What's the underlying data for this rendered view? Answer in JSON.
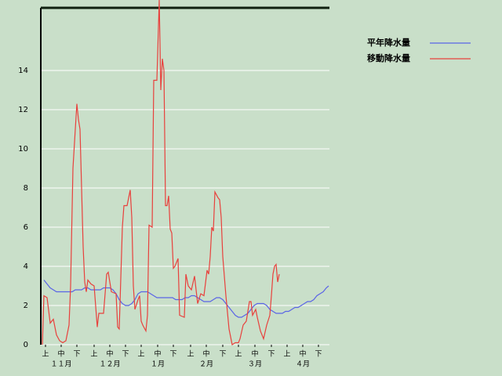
{
  "chart_data": {
    "type": "line",
    "xlim": [
      0,
      184
    ],
    "ylim": [
      0,
      17.2
    ],
    "yticks": [
      0,
      2,
      4,
      6,
      8,
      10,
      12,
      14
    ],
    "xticks": [
      {
        "value": 3,
        "label": "上"
      },
      {
        "value": 13,
        "label": "中"
      },
      {
        "value": 23,
        "label": "下"
      },
      {
        "value": 34,
        "label": "上"
      },
      {
        "value": 44,
        "label": "中"
      },
      {
        "value": 54,
        "label": "下"
      },
      {
        "value": 64,
        "label": "上"
      },
      {
        "value": 74.5,
        "label": "中"
      },
      {
        "value": 84.5,
        "label": "下"
      },
      {
        "value": 95.5,
        "label": "上"
      },
      {
        "value": 105.5,
        "label": "中"
      },
      {
        "value": 116,
        "label": "下"
      },
      {
        "value": 126,
        "label": "上"
      },
      {
        "value": 136.5,
        "label": "中"
      },
      {
        "value": 147,
        "label": "下"
      },
      {
        "value": 157,
        "label": "上"
      },
      {
        "value": 167,
        "label": "中"
      },
      {
        "value": 177,
        "label": "下"
      }
    ],
    "month_ticks": [
      {
        "value": 13,
        "label": "１１月"
      },
      {
        "value": 44,
        "label": "１２月"
      },
      {
        "value": 74.5,
        "label": "１月"
      },
      {
        "value": 105.5,
        "label": "２月"
      },
      {
        "value": 136.5,
        "label": "３月"
      },
      {
        "value": 167,
        "label": "４月"
      }
    ],
    "grid": true,
    "series": [
      {
        "name": "平年降水量",
        "color": "#5a64e6",
        "x": [
          2,
          4,
          6,
          8,
          10,
          20,
          22,
          26,
          28,
          30,
          32,
          38,
          40,
          44,
          46,
          48,
          50,
          52,
          54,
          56,
          58,
          60,
          62,
          64,
          68,
          70,
          72,
          74,
          84,
          86,
          90,
          92,
          94,
          96,
          98,
          100,
          102,
          104,
          108,
          110,
          112,
          114,
          116,
          118,
          120,
          122,
          124,
          126,
          128,
          130,
          132,
          134,
          136,
          138,
          142,
          144,
          146,
          148,
          150,
          154,
          156,
          158,
          160,
          162,
          164,
          166,
          168,
          170,
          172,
          174,
          176,
          178,
          180,
          182,
          183.5
        ],
        "values": [
          3.3,
          3.1,
          2.9,
          2.8,
          2.7,
          2.7,
          2.8,
          2.8,
          2.9,
          2.9,
          2.8,
          2.8,
          2.9,
          2.9,
          2.8,
          2.6,
          2.3,
          2.1,
          2.0,
          2.0,
          2.1,
          2.3,
          2.6,
          2.7,
          2.7,
          2.6,
          2.5,
          2.4,
          2.4,
          2.3,
          2.3,
          2.4,
          2.4,
          2.5,
          2.5,
          2.4,
          2.3,
          2.2,
          2.2,
          2.3,
          2.4,
          2.4,
          2.3,
          2.1,
          1.9,
          1.7,
          1.5,
          1.4,
          1.4,
          1.5,
          1.6,
          1.8,
          2.0,
          2.1,
          2.1,
          2.0,
          1.8,
          1.7,
          1.6,
          1.6,
          1.7,
          1.7,
          1.8,
          1.9,
          1.9,
          2.0,
          2.1,
          2.2,
          2.2,
          2.3,
          2.5,
          2.6,
          2.7,
          2.9,
          3.0
        ]
      },
      {
        "name": "移動降水量",
        "color": "#e8403c",
        "x": [
          1,
          2,
          4,
          6,
          8,
          10,
          12,
          14,
          16,
          18,
          19,
          20.5,
          22,
          23,
          24,
          25,
          26,
          27,
          28,
          29,
          30,
          32,
          34,
          36,
          37,
          40,
          42,
          43,
          45,
          48,
          49,
          50,
          52,
          53,
          55,
          57,
          58,
          59,
          60,
          62,
          63,
          64,
          65,
          67,
          68,
          69,
          71,
          72,
          74,
          75.5,
          76.5,
          77.5,
          78.5,
          79.5,
          80.5,
          81.5,
          82.5,
          83.5,
          84.5,
          85.5,
          87.5,
          88.5,
          91.5,
          92.5,
          94,
          96,
          98,
          100,
          102,
          104,
          106,
          107,
          108,
          109,
          110,
          111,
          113,
          114,
          115,
          116,
          118,
          120,
          122,
          124,
          126,
          127,
          129,
          131,
          133,
          134,
          135,
          137,
          138,
          140,
          142,
          144,
          146,
          147,
          148,
          149,
          150,
          151,
          152
        ],
        "values": [
          0,
          2.5,
          2.4,
          1.1,
          1.3,
          0.5,
          0.2,
          0.1,
          0.2,
          1.0,
          3,
          9,
          11,
          12.3,
          11.5,
          11,
          8,
          5,
          3.2,
          2.7,
          3.3,
          3.1,
          3.0,
          0.9,
          1.6,
          1.6,
          3.6,
          3.7,
          2.7,
          2.6,
          0.9,
          0.8,
          6,
          7.1,
          7.1,
          7.9,
          6.5,
          3,
          1.8,
          2.3,
          2.5,
          1.2,
          1,
          0.7,
          1.5,
          6.1,
          6,
          13.5,
          13.5,
          17.6,
          13,
          14.6,
          14,
          7.1,
          7.1,
          7.6,
          5.9,
          5.7,
          3.9,
          4,
          4.4,
          1.5,
          1.4,
          3.6,
          3.0,
          2.8,
          3.5,
          2.1,
          2.6,
          2.5,
          3.8,
          3.6,
          4.5,
          6,
          5.8,
          7.8,
          7.5,
          7.4,
          6.5,
          4.5,
          2.5,
          0.8,
          0,
          0.1,
          0.1,
          0.3,
          1,
          1.2,
          2.2,
          2.2,
          1.5,
          1.8,
          1.4,
          0.7,
          0.3,
          1,
          1.5,
          2.5,
          3.6,
          4,
          4.1,
          3.2,
          3.6
        ]
      }
    ]
  }
}
